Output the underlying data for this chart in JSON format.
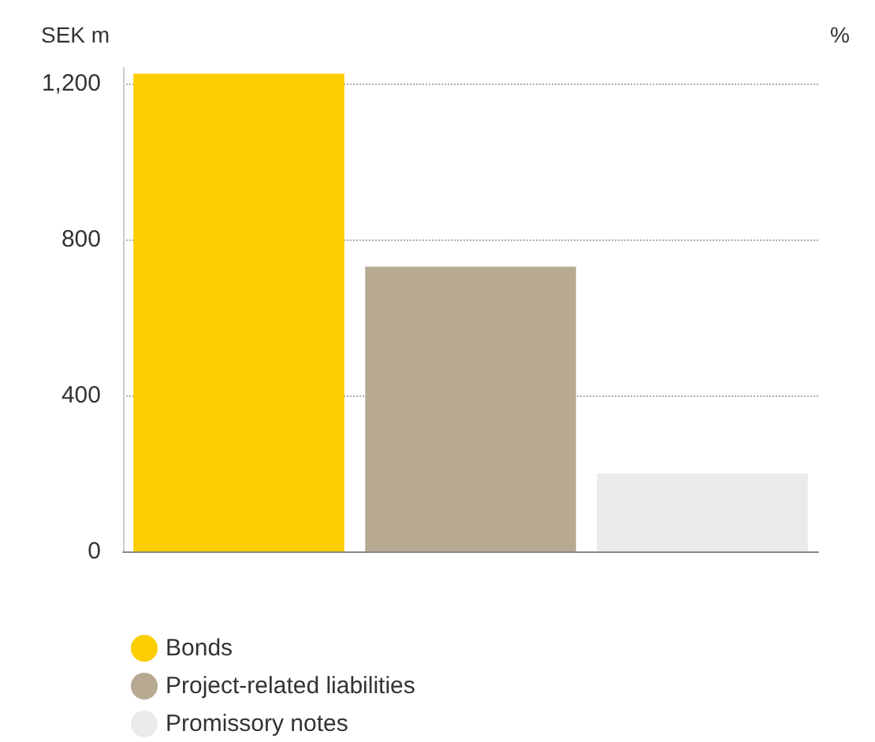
{
  "chart_data": {
    "type": "bar",
    "ylabel": "SEK m",
    "y2label": "%",
    "categories": [
      null,
      null,
      null
    ],
    "stacked": true,
    "series": [
      {
        "name": "Bonds",
        "color": "#fccd00",
        "values": [
          1225,
          null,
          null
        ]
      },
      {
        "name": "Project-related liabilities",
        "color": "#b8a993",
        "values": [
          null,
          730,
          null
        ]
      },
      {
        "name": "Promissory notes",
        "color": "#eaeceb",
        "values": [
          null,
          null,
          200
        ]
      }
    ],
    "ylim": [
      0,
      1240
    ],
    "yticks": [
      {
        "value": 0,
        "label": "0"
      },
      {
        "value": 400,
        "label": "400"
      },
      {
        "value": 800,
        "label": "800"
      },
      {
        "value": 1200,
        "label": "1,200"
      }
    ],
    "grid": "y",
    "legend": "bottom left"
  }
}
